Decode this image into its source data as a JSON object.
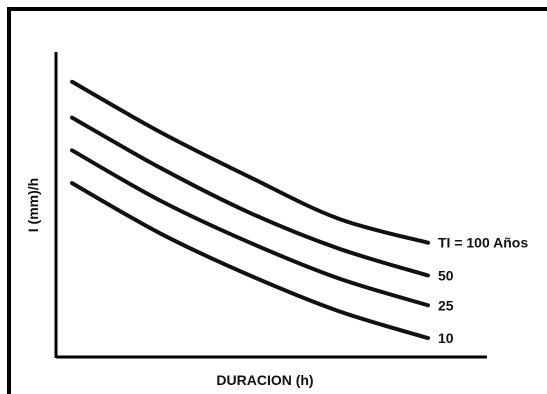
{
  "chart_data": {
    "type": "line",
    "xlabel": "DURACION (h)",
    "ylabel": "I (mm)/h",
    "x": [
      0,
      0.25,
      0.5,
      0.75,
      1
    ],
    "series": [
      {
        "name": "TI = 100 Años",
        "values": [
          0.9,
          0.73,
          0.58,
          0.44,
          0.36
        ]
      },
      {
        "name": "50",
        "values": [
          0.78,
          0.61,
          0.46,
          0.34,
          0.25
        ]
      },
      {
        "name": "25",
        "values": [
          0.67,
          0.5,
          0.36,
          0.24,
          0.15
        ]
      },
      {
        "name": "10",
        "values": [
          0.56,
          0.39,
          0.25,
          0.13,
          0.04
        ]
      }
    ],
    "xlim": [
      0,
      1
    ],
    "ylim": [
      0,
      1
    ],
    "grid": false,
    "legend": "none",
    "line_color": "#111111"
  }
}
